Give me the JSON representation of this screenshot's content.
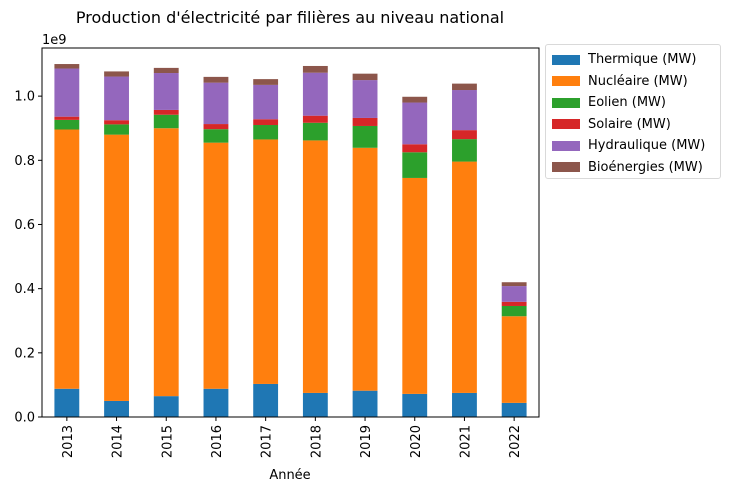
{
  "chart_data": {
    "type": "bar",
    "stacked": true,
    "title": "Production d'électricité par filières au niveau national",
    "xlabel": "Année",
    "ylabel": "",
    "y_scale_label": "1e9",
    "ylim": [
      0,
      1150000000
    ],
    "yticks": [
      0,
      200000000,
      400000000,
      600000000,
      800000000,
      1000000000
    ],
    "ytick_labels": [
      "0.0",
      "0.2",
      "0.4",
      "0.6",
      "0.8",
      "1.0"
    ],
    "legend_position": "outside-top-right",
    "categories": [
      "2013",
      "2014",
      "2015",
      "2016",
      "2017",
      "2018",
      "2019",
      "2020",
      "2021",
      "2022"
    ],
    "series": [
      {
        "name": "Thermique (MW)",
        "color": "#1f77b4",
        "values": [
          88000000,
          50000000,
          65000000,
          88000000,
          103000000,
          75000000,
          82000000,
          72000000,
          75000000,
          44000000
        ]
      },
      {
        "name": "Nucléaire (MW)",
        "color": "#ff7f0e",
        "values": [
          808000000,
          830000000,
          835000000,
          767000000,
          762000000,
          787000000,
          757000000,
          673000000,
          721000000,
          270000000
        ]
      },
      {
        "name": "Eolien (MW)",
        "color": "#2ca02c",
        "values": [
          30000000,
          32000000,
          42000000,
          42000000,
          45000000,
          55000000,
          68000000,
          80000000,
          70000000,
          32000000
        ]
      },
      {
        "name": "Solaire (MW)",
        "color": "#d62728",
        "values": [
          10000000,
          13000000,
          15000000,
          16000000,
          18000000,
          22000000,
          25000000,
          25000000,
          28000000,
          13000000
        ]
      },
      {
        "name": "Hydraulique (MW)",
        "color": "#9467bd",
        "values": [
          150000000,
          136000000,
          115000000,
          129000000,
          107000000,
          134000000,
          118000000,
          130000000,
          125000000,
          49000000
        ]
      },
      {
        "name": "Bioénergies (MW)",
        "color": "#8c564b",
        "values": [
          14000000,
          16000000,
          16000000,
          18000000,
          18000000,
          21000000,
          20000000,
          18000000,
          20000000,
          12000000
        ]
      }
    ]
  }
}
